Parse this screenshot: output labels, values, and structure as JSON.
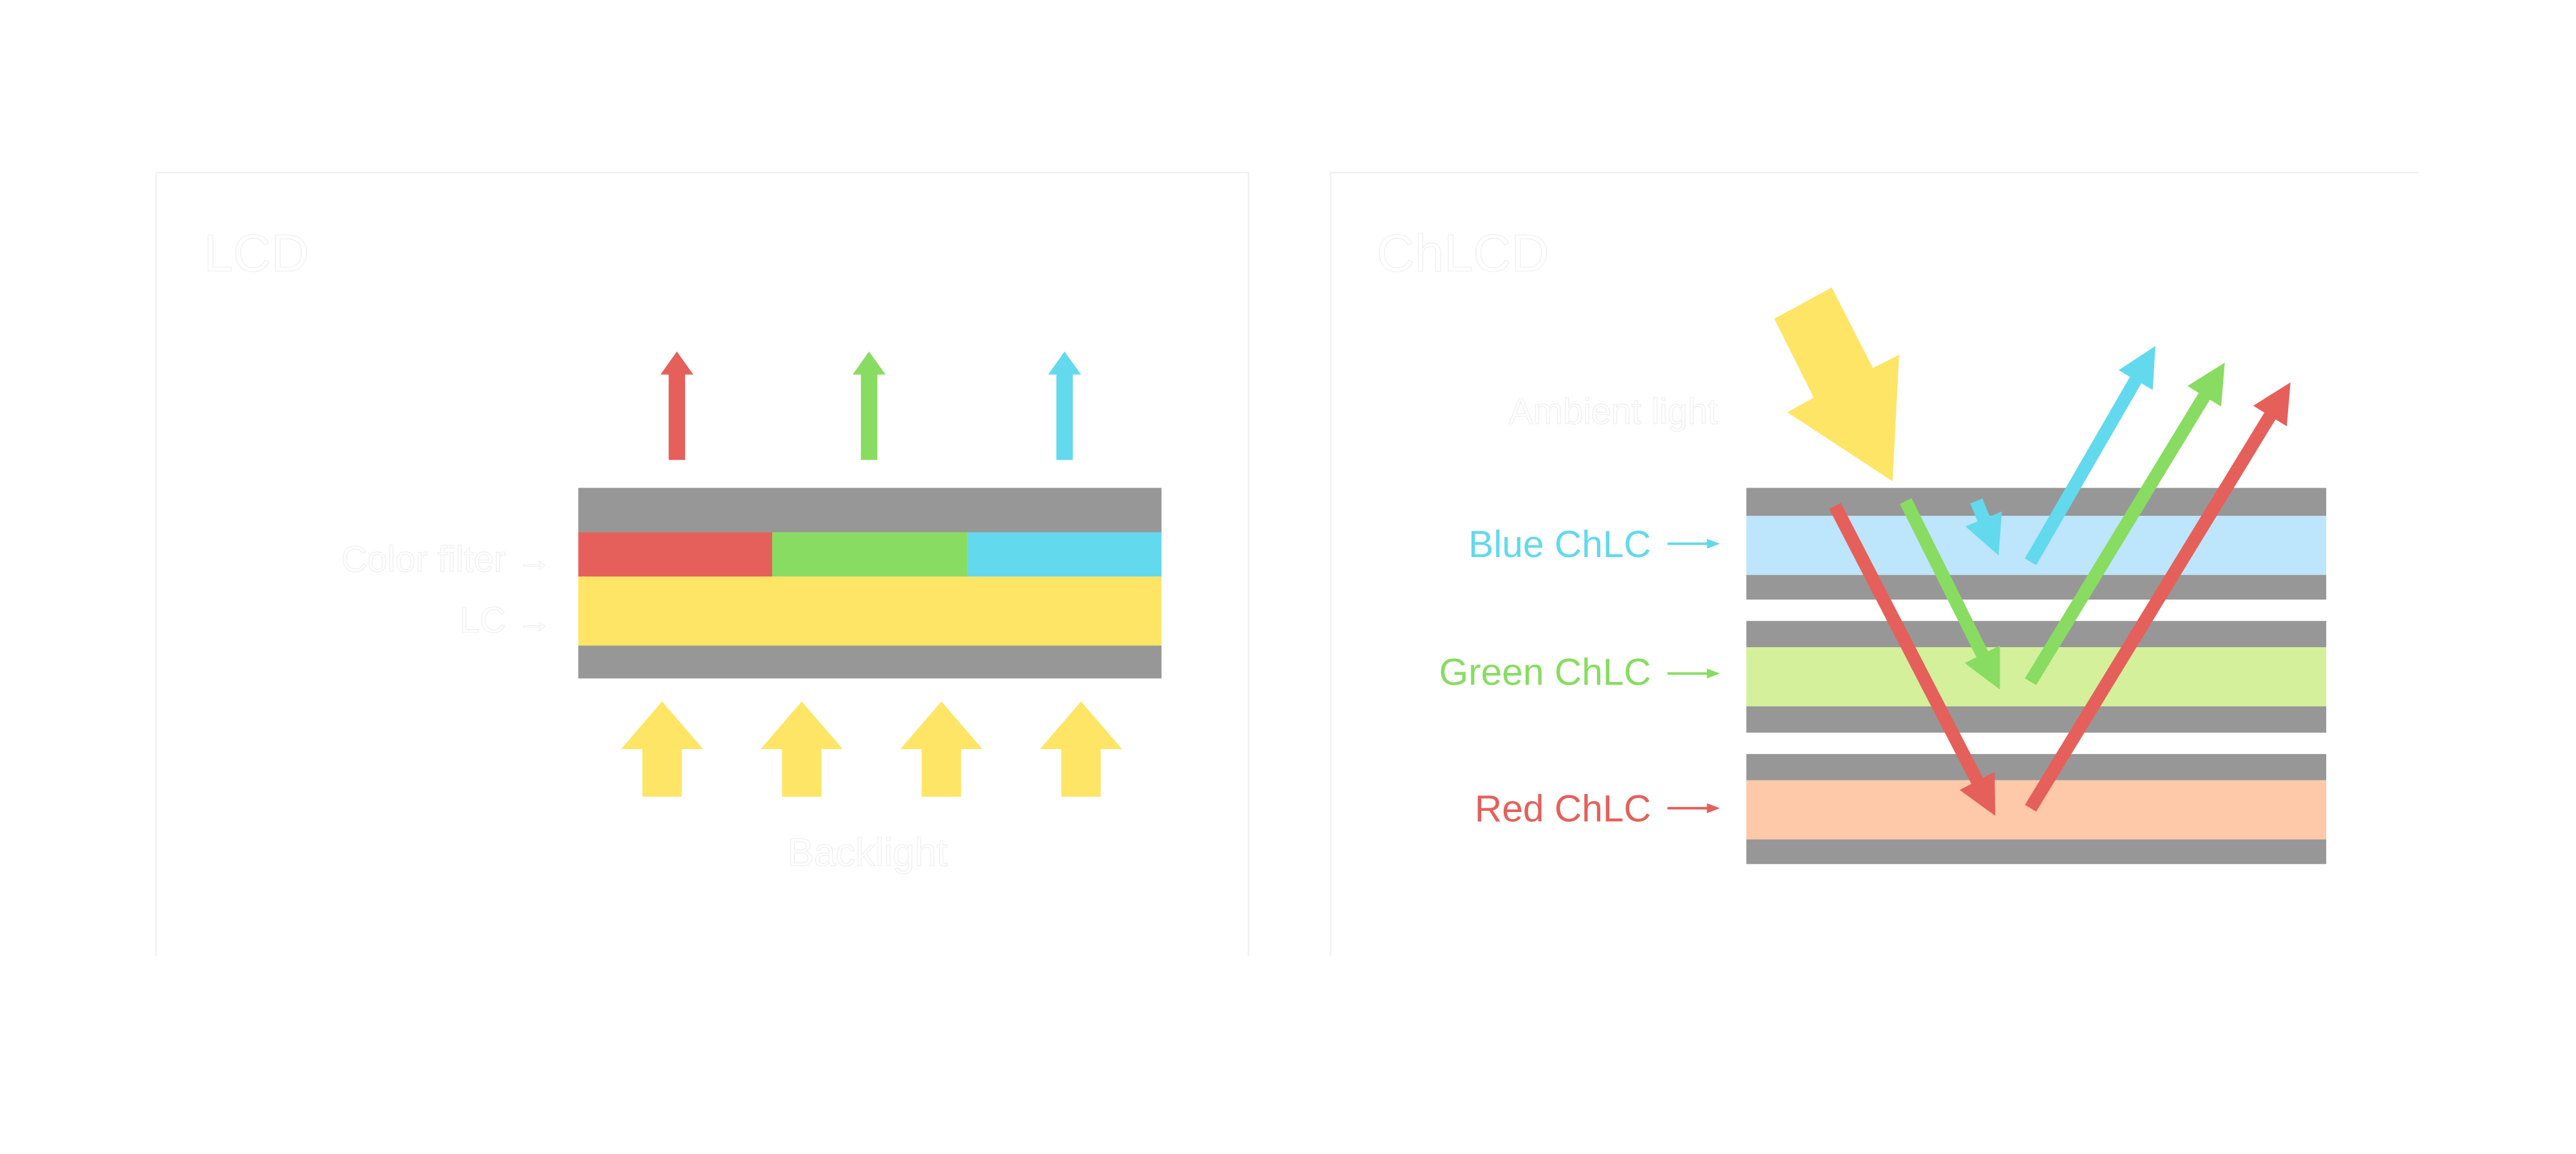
{
  "colors": {
    "gray": "#979797",
    "red": "#e5605a",
    "green": "#88dc61",
    "cyan": "#62d9ed",
    "yellow": "#fee566",
    "blue_layer": "#bde5fb",
    "green_layer": "#d4f09a",
    "red_layer": "#fdc9a8"
  },
  "lcd": {
    "title": "LCD",
    "color_filter_label": "Color filter →",
    "lc_label": "LC →",
    "backlight_label": "Backlight"
  },
  "chlcd": {
    "title": "ChLCD",
    "ambient_label": "Ambient light",
    "blue_label": "Blue ChLC",
    "green_label": "Green ChLC",
    "red_label": "Red ChLC"
  }
}
